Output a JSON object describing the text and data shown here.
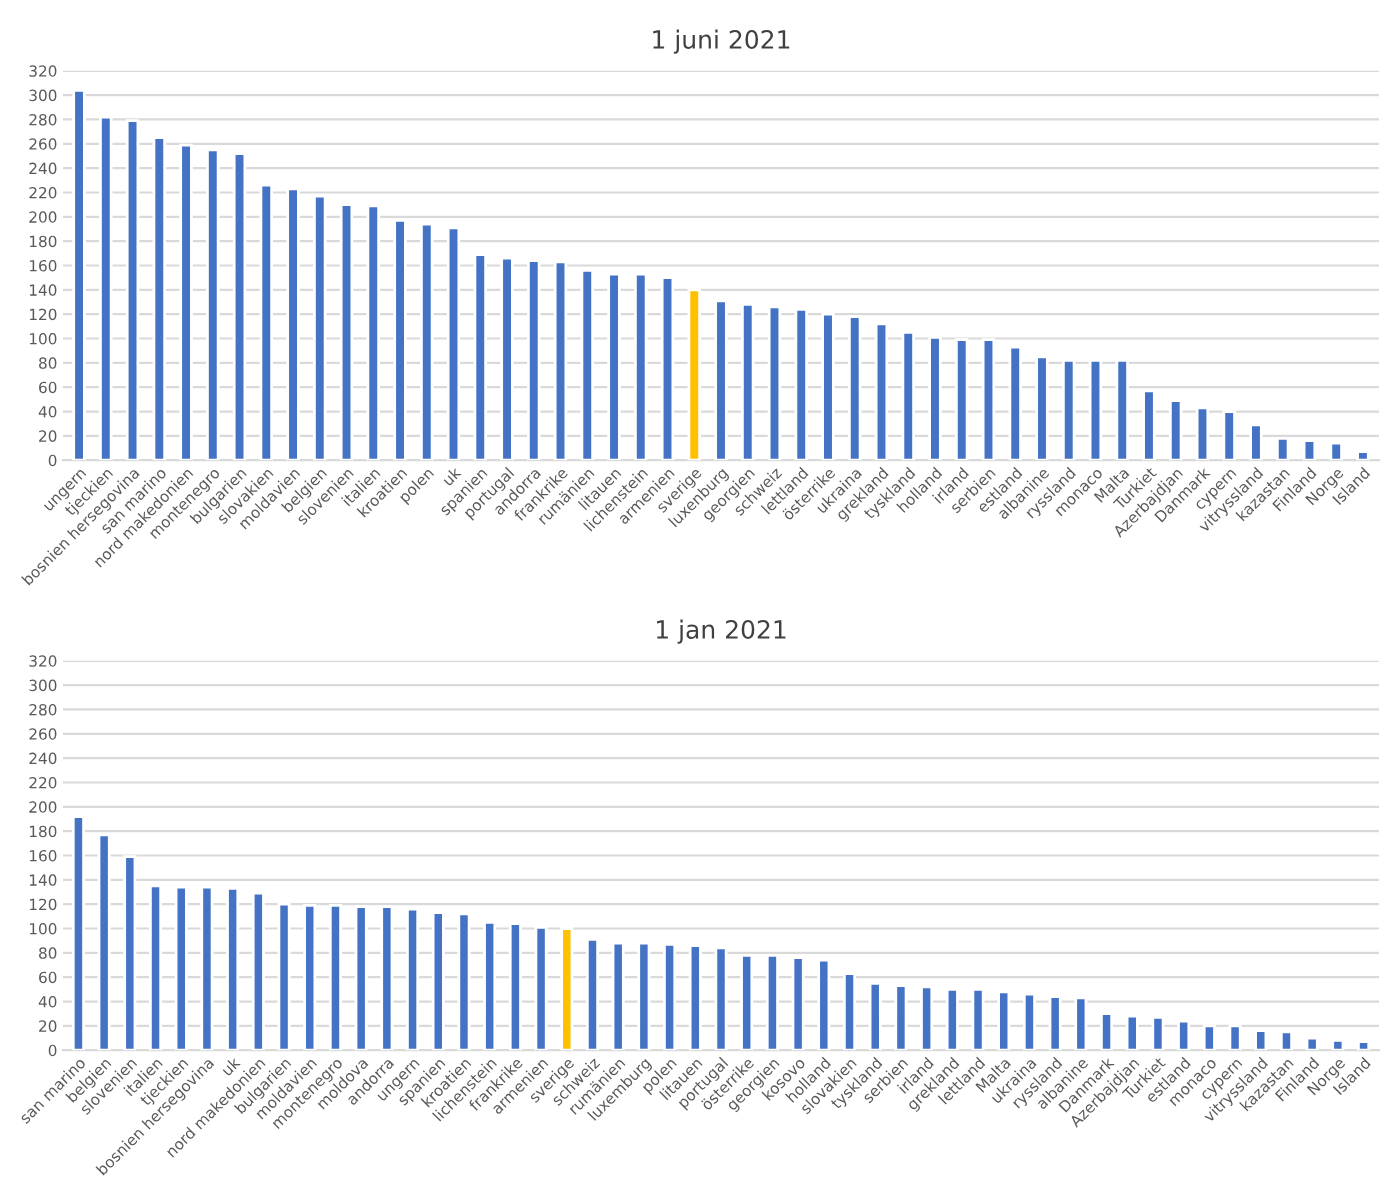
{
  "chart_data": [
    {
      "type": "bar",
      "title": "1 juni 2021",
      "categories": [
        "ungern",
        "tjeckien",
        "bosnien hersegovina",
        "san marino",
        "nord makedonien",
        "montenegro",
        "bulgarien",
        "slovakien",
        "moldavien",
        "belgien",
        "slovenien",
        "italien",
        "kroatien",
        "polen",
        "uk",
        "spanien",
        "portugal",
        "andorra",
        "frankrike",
        "rumänien",
        "litauen",
        "lichenstein",
        "armenien",
        "sverige",
        "luxenburg",
        "georgien",
        "schweiz",
        "lettland",
        "österrike",
        "ukraina",
        "grekland",
        "tyskland",
        "holland",
        "irland",
        "serbien",
        "estland",
        "albanine",
        "ryssland",
        "monaco",
        "Malta",
        "Turkiet",
        "Azerbajdjan",
        "Danmark",
        "cypern",
        "vitryssland",
        "kazastan",
        "Finland",
        "Norge",
        "Island"
      ],
      "values": [
        304,
        282,
        279,
        265,
        259,
        255,
        252,
        226,
        223,
        217,
        210,
        209,
        197,
        194,
        191,
        169,
        166,
        164,
        163,
        156,
        153,
        153,
        150,
        140,
        131,
        128,
        126,
        124,
        120,
        118,
        112,
        105,
        101,
        99,
        99,
        93,
        85,
        82,
        82,
        82,
        57,
        49,
        43,
        40,
        29,
        18,
        16,
        14,
        7
      ],
      "colors": [
        "#4472c4",
        "#4472c4",
        "#4472c4",
        "#4472c4",
        "#4472c4",
        "#4472c4",
        "#4472c4",
        "#4472c4",
        "#4472c4",
        "#4472c4",
        "#4472c4",
        "#4472c4",
        "#4472c4",
        "#4472c4",
        "#4472c4",
        "#4472c4",
        "#4472c4",
        "#4472c4",
        "#4472c4",
        "#4472c4",
        "#4472c4",
        "#4472c4",
        "#4472c4",
        "#ffc000",
        "#4472c4",
        "#4472c4",
        "#4472c4",
        "#4472c4",
        "#4472c4",
        "#4472c4",
        "#4472c4",
        "#4472c4",
        "#4472c4",
        "#4472c4",
        "#4472c4",
        "#4472c4",
        "#4472c4",
        "#4472c4",
        "#4472c4",
        "#4472c4",
        "#4472c4",
        "#4472c4",
        "#4472c4",
        "#4472c4",
        "#4472c4",
        "#4472c4",
        "#4472c4",
        "#4472c4",
        "#4472c4"
      ],
      "ylim": [
        0,
        320
      ],
      "yticks": [
        0,
        20,
        40,
        60,
        80,
        100,
        120,
        140,
        160,
        180,
        200,
        220,
        240,
        260,
        280,
        300,
        320
      ],
      "grid": "y"
    },
    {
      "type": "bar",
      "title": "1 jan 2021",
      "categories": [
        "san marino",
        "belgien",
        "slovenien",
        "italien",
        "tjeckien",
        "bosnien hersegovina",
        "uk",
        "nord makedonien",
        "bulgarien",
        "moldavien",
        "montenegro",
        "moldova",
        "andorra",
        "ungern",
        "spanien",
        "kroatien",
        "lichenstein",
        "frankrike",
        "armenien",
        "sverige",
        "schweiz",
        "rumänien",
        "luxemburg",
        "polen",
        "litauen",
        "portugal",
        "österrike",
        "georgien",
        "kosovo",
        "holland",
        "slovakien",
        "tyskland",
        "serbien",
        "irland",
        "grekland",
        "lettland",
        "Malta",
        "ukraina",
        "ryssland",
        "albanine",
        "Danmark",
        "Azerbajdjan",
        "Turkiet",
        "estland",
        "monaco",
        "cypern",
        "vitryssland",
        "kazastan",
        "Finland",
        "Norge",
        "Island"
      ],
      "values": [
        192,
        177,
        159,
        135,
        134,
        134,
        133,
        129,
        120,
        119,
        119,
        118,
        118,
        116,
        113,
        112,
        105,
        104,
        101,
        100,
        91,
        88,
        88,
        87,
        86,
        84,
        78,
        78,
        76,
        74,
        63,
        55,
        53,
        52,
        50,
        50,
        48,
        46,
        44,
        43,
        30,
        28,
        27,
        24,
        20,
        20,
        16,
        15,
        10,
        8,
        7
      ],
      "colors": [
        "#4472c4",
        "#4472c4",
        "#4472c4",
        "#4472c4",
        "#4472c4",
        "#4472c4",
        "#4472c4",
        "#4472c4",
        "#4472c4",
        "#4472c4",
        "#4472c4",
        "#4472c4",
        "#4472c4",
        "#4472c4",
        "#4472c4",
        "#4472c4",
        "#4472c4",
        "#4472c4",
        "#4472c4",
        "#ffc000",
        "#4472c4",
        "#4472c4",
        "#4472c4",
        "#4472c4",
        "#4472c4",
        "#4472c4",
        "#4472c4",
        "#4472c4",
        "#4472c4",
        "#4472c4",
        "#4472c4",
        "#4472c4",
        "#4472c4",
        "#4472c4",
        "#4472c4",
        "#4472c4",
        "#4472c4",
        "#4472c4",
        "#4472c4",
        "#4472c4",
        "#4472c4",
        "#4472c4",
        "#4472c4",
        "#4472c4",
        "#4472c4",
        "#4472c4",
        "#4472c4",
        "#4472c4",
        "#4472c4",
        "#4472c4",
        "#4472c4"
      ],
      "ylim": [
        0,
        320
      ],
      "yticks": [
        0,
        20,
        40,
        60,
        80,
        100,
        120,
        140,
        160,
        180,
        200,
        220,
        240,
        260,
        280,
        300,
        320
      ],
      "grid": "y"
    }
  ]
}
